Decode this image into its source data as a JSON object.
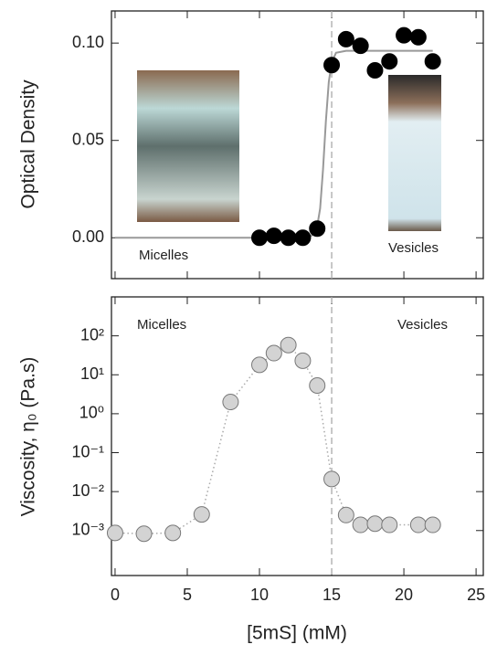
{
  "chart_data": [
    {
      "type": "scatter",
      "y_label": "Optical Density",
      "annotations": [
        "Micelles",
        "Vesicles"
      ],
      "xlim": [
        -0.25,
        25.5
      ],
      "xticks": [
        0,
        5,
        10,
        15,
        20,
        25
      ],
      "ylim": [
        -0.021,
        0.1165
      ],
      "yticks": [
        {
          "value": 0,
          "label": "0.00"
        },
        {
          "value": 0.05,
          "label": "0.05"
        },
        {
          "value": 0.1,
          "label": "0.10"
        }
      ],
      "log_y": false,
      "vline": 15,
      "series": [
        {
          "mode": "line",
          "color": "#999999",
          "x": [
            0,
            13,
            13.6,
            14,
            14.2,
            14.4,
            14.6,
            14.8,
            15,
            15.3,
            16,
            22
          ],
          "values": [
            0,
            0,
            0.001,
            0.006,
            0.015,
            0.035,
            0.06,
            0.08,
            0.09,
            0.095,
            0.096,
            0.096
          ]
        },
        {
          "mode": "markers",
          "color": "#000000",
          "x": [
            10,
            11,
            12,
            13,
            14,
            15,
            16,
            17,
            18,
            19,
            20,
            21,
            22
          ],
          "values": [
            0,
            0.001,
            0,
            0,
            0.0047,
            0.0887,
            0.102,
            0.0986,
            0.086,
            0.0906,
            0.104,
            0.103,
            0.0906
          ]
        }
      ]
    },
    {
      "type": "scatter",
      "y_label": "Viscosity, η₀ (Pa.s)",
      "x_label": "[5mS] (mM)",
      "annotations": [
        "Micelles",
        "Vesicles"
      ],
      "xlim": [
        -0.25,
        25.5
      ],
      "xticks": [
        0,
        5,
        10,
        15,
        20,
        25
      ],
      "ylim": [
        7e-05,
        1000
      ],
      "yticks": [
        {
          "value": 0.001,
          "label": "10⁻³"
        },
        {
          "value": 0.01,
          "label": "10⁻²"
        },
        {
          "value": 0.1,
          "label": "10⁻¹"
        },
        {
          "value": 1,
          "label": "10⁰"
        },
        {
          "value": 10,
          "label": "10¹"
        },
        {
          "value": 100,
          "label": "10²"
        }
      ],
      "log_y": true,
      "vline": 15,
      "series": [
        {
          "mode": "markers+dotted",
          "color": "#d3d3d3",
          "x": [
            0,
            2,
            4,
            6,
            8,
            10,
            11,
            12,
            13,
            14,
            15,
            16,
            17,
            18,
            19,
            21,
            22
          ],
          "values": [
            0.00087,
            0.00083,
            0.00087,
            0.0026,
            2,
            18,
            36,
            58,
            23,
            5.3,
            0.021,
            0.0025,
            0.0014,
            0.0015,
            0.0014,
            0.0014,
            0.0014
          ]
        }
      ]
    }
  ]
}
